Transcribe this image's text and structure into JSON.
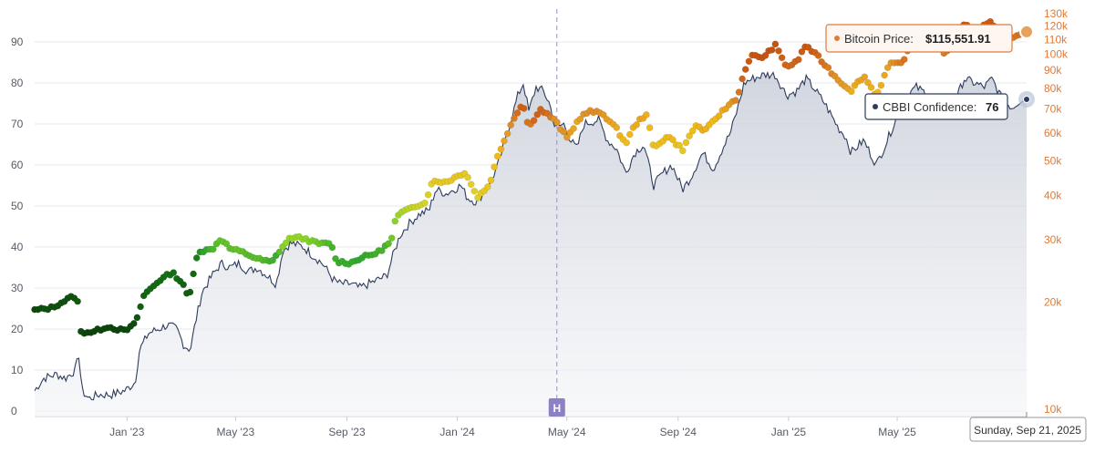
{
  "chart_data": {
    "type": "line",
    "x_ticks": [
      "Jan '23",
      "May '23",
      "Sep '23",
      "Jan '24",
      "May '24",
      "Sep '24",
      "Jan '25",
      "May '25"
    ],
    "y_left": {
      "ticks": [
        "0",
        "10",
        "20",
        "30",
        "40",
        "50",
        "60",
        "70",
        "80",
        "90"
      ],
      "range": [
        0,
        100
      ]
    },
    "y_right": {
      "ticks": [
        "10k",
        "20k",
        "30k",
        "40k",
        "50k",
        "60k",
        "70k",
        "80k",
        "90k",
        "100k",
        "110k",
        "120k",
        "130k"
      ],
      "scale": "log",
      "range": [
        10000,
        130000
      ]
    },
    "series": [
      {
        "name": "CBBI Confidence",
        "color": "#2d3b5c",
        "points": [
          [
            "2022-09-21",
            5
          ],
          [
            "2022-10-01",
            8
          ],
          [
            "2022-10-15",
            9
          ],
          [
            "2022-10-25",
            8
          ],
          [
            "2022-11-05",
            10
          ],
          [
            "2022-11-09",
            14
          ],
          [
            "2022-11-12",
            5
          ],
          [
            "2022-11-20",
            3
          ],
          [
            "2022-12-01",
            4
          ],
          [
            "2022-12-15",
            4
          ],
          [
            "2022-12-30",
            5
          ],
          [
            "2023-01-10",
            7
          ],
          [
            "2023-01-15",
            15
          ],
          [
            "2023-01-25",
            19
          ],
          [
            "2023-02-05",
            20
          ],
          [
            "2023-02-15",
            21
          ],
          [
            "2023-02-25",
            20
          ],
          [
            "2023-03-05",
            16
          ],
          [
            "2023-03-12",
            15
          ],
          [
            "2023-03-18",
            22
          ],
          [
            "2023-03-25",
            29
          ],
          [
            "2023-04-05",
            33
          ],
          [
            "2023-04-15",
            36
          ],
          [
            "2023-04-25",
            35
          ],
          [
            "2023-05-05",
            36
          ],
          [
            "2023-05-15",
            34
          ],
          [
            "2023-05-25",
            35
          ],
          [
            "2023-06-05",
            33
          ],
          [
            "2023-06-15",
            31
          ],
          [
            "2023-06-22",
            39
          ],
          [
            "2023-07-01",
            41
          ],
          [
            "2023-07-15",
            40
          ],
          [
            "2023-07-25",
            38
          ],
          [
            "2023-08-05",
            36
          ],
          [
            "2023-08-17",
            32
          ],
          [
            "2023-08-25",
            31
          ],
          [
            "2023-09-05",
            31
          ],
          [
            "2023-09-15",
            30
          ],
          [
            "2023-09-25",
            31
          ],
          [
            "2023-10-05",
            32
          ],
          [
            "2023-10-15",
            33
          ],
          [
            "2023-10-22",
            38
          ],
          [
            "2023-10-30",
            43
          ],
          [
            "2023-11-10",
            46
          ],
          [
            "2023-11-20",
            48
          ],
          [
            "2023-12-01",
            49
          ],
          [
            "2023-12-08",
            54
          ],
          [
            "2023-12-20",
            53
          ],
          [
            "2024-01-05",
            55
          ],
          [
            "2024-01-12",
            52
          ],
          [
            "2024-01-22",
            51
          ],
          [
            "2024-02-05",
            55
          ],
          [
            "2024-02-15",
            60
          ],
          [
            "2024-02-28",
            70
          ],
          [
            "2024-03-08",
            77
          ],
          [
            "2024-03-14",
            80
          ],
          [
            "2024-03-20",
            73
          ],
          [
            "2024-03-28",
            79
          ],
          [
            "2024-04-05",
            78
          ],
          [
            "2024-04-12",
            75
          ],
          [
            "2024-04-18",
            69
          ],
          [
            "2024-04-28",
            70
          ],
          [
            "2024-05-05",
            66
          ],
          [
            "2024-05-12",
            64
          ],
          [
            "2024-05-20",
            70
          ],
          [
            "2024-06-05",
            71
          ],
          [
            "2024-06-15",
            66
          ],
          [
            "2024-06-25",
            64
          ],
          [
            "2024-07-05",
            58
          ],
          [
            "2024-07-15",
            63
          ],
          [
            "2024-07-25",
            65
          ],
          [
            "2024-08-05",
            55
          ],
          [
            "2024-08-15",
            58
          ],
          [
            "2024-08-25",
            60
          ],
          [
            "2024-09-06",
            54
          ],
          [
            "2024-09-15",
            57
          ],
          [
            "2024-09-28",
            63
          ],
          [
            "2024-10-10",
            59
          ],
          [
            "2024-10-20",
            64
          ],
          [
            "2024-10-29",
            68
          ],
          [
            "2024-11-06",
            74
          ],
          [
            "2024-11-13",
            80
          ],
          [
            "2024-11-22",
            81
          ],
          [
            "2024-12-05",
            82
          ],
          [
            "2024-12-17",
            82
          ],
          [
            "2024-12-30",
            77
          ],
          [
            "2025-01-10",
            78
          ],
          [
            "2025-01-20",
            81
          ],
          [
            "2025-01-28",
            79
          ],
          [
            "2025-02-10",
            75
          ],
          [
            "2025-02-25",
            69
          ],
          [
            "2025-03-05",
            67
          ],
          [
            "2025-03-11",
            63
          ],
          [
            "2025-03-25",
            66
          ],
          [
            "2025-04-08",
            60
          ],
          [
            "2025-04-20",
            66
          ],
          [
            "2025-05-01",
            72
          ],
          [
            "2025-05-12",
            77
          ],
          [
            "2025-05-22",
            79
          ],
          [
            "2025-06-05",
            77
          ],
          [
            "2025-06-15",
            76
          ],
          [
            "2025-06-22",
            74
          ],
          [
            "2025-07-05",
            76
          ],
          [
            "2025-07-14",
            81
          ],
          [
            "2025-07-25",
            80
          ],
          [
            "2025-08-05",
            79
          ],
          [
            "2025-08-14",
            81
          ],
          [
            "2025-08-25",
            76
          ],
          [
            "2025-09-05",
            74
          ],
          [
            "2025-09-15",
            76
          ],
          [
            "2025-09-21",
            76
          ]
        ]
      },
      {
        "name": "Bitcoin Price",
        "color": "#e07a3a",
        "points": [
          [
            "2022-09-21",
            19000
          ],
          [
            "2022-10-10",
            19300
          ],
          [
            "2022-10-30",
            20600
          ],
          [
            "2022-11-07",
            20800
          ],
          [
            "2022-11-10",
            16500
          ],
          [
            "2022-11-25",
            16500
          ],
          [
            "2022-12-10",
            17100
          ],
          [
            "2022-12-30",
            16600
          ],
          [
            "2023-01-10",
            17400
          ],
          [
            "2023-01-20",
            21000
          ],
          [
            "2023-02-05",
            23000
          ],
          [
            "2023-02-20",
            24300
          ],
          [
            "2023-03-05",
            22400
          ],
          [
            "2023-03-10",
            20200
          ],
          [
            "2023-03-20",
            27800
          ],
          [
            "2023-04-05",
            28200
          ],
          [
            "2023-04-15",
            30300
          ],
          [
            "2023-04-25",
            28300
          ],
          [
            "2023-05-10",
            27600
          ],
          [
            "2023-05-25",
            26500
          ],
          [
            "2023-06-10",
            25900
          ],
          [
            "2023-06-20",
            28300
          ],
          [
            "2023-07-01",
            30500
          ],
          [
            "2023-07-15",
            30300
          ],
          [
            "2023-07-30",
            29300
          ],
          [
            "2023-08-15",
            29200
          ],
          [
            "2023-08-20",
            26100
          ],
          [
            "2023-09-05",
            25800
          ],
          [
            "2023-09-15",
            26600
          ],
          [
            "2023-10-05",
            27600
          ],
          [
            "2023-10-20",
            29700
          ],
          [
            "2023-10-25",
            34500
          ],
          [
            "2023-11-10",
            37300
          ],
          [
            "2023-11-25",
            37700
          ],
          [
            "2023-12-05",
            43900
          ],
          [
            "2023-12-20",
            43700
          ],
          [
            "2024-01-10",
            46600
          ],
          [
            "2024-01-23",
            39500
          ],
          [
            "2024-02-05",
            42700
          ],
          [
            "2024-02-15",
            52000
          ],
          [
            "2024-02-28",
            62500
          ],
          [
            "2024-03-05",
            67000
          ],
          [
            "2024-03-13",
            73100
          ],
          [
            "2024-03-20",
            62000
          ],
          [
            "2024-04-01",
            70000
          ],
          [
            "2024-04-12",
            67000
          ],
          [
            "2024-04-20",
            64000
          ],
          [
            "2024-05-01",
            58000
          ],
          [
            "2024-05-15",
            66000
          ],
          [
            "2024-05-25",
            69000
          ],
          [
            "2024-06-10",
            68000
          ],
          [
            "2024-06-25",
            61500
          ],
          [
            "2024-07-05",
            56000
          ],
          [
            "2024-07-15",
            63000
          ],
          [
            "2024-07-28",
            68000
          ],
          [
            "2024-08-05",
            54000
          ],
          [
            "2024-08-20",
            59000
          ],
          [
            "2024-09-06",
            53900
          ],
          [
            "2024-09-20",
            63000
          ],
          [
            "2024-10-01",
            60800
          ],
          [
            "2024-10-15",
            67000
          ],
          [
            "2024-10-29",
            72700
          ],
          [
            "2024-11-06",
            75800
          ],
          [
            "2024-11-13",
            90000
          ],
          [
            "2024-11-22",
            98900
          ],
          [
            "2024-12-05",
            98000
          ],
          [
            "2024-12-17",
            106100
          ],
          [
            "2024-12-30",
            92000
          ],
          [
            "2025-01-10",
            95000
          ],
          [
            "2025-01-20",
            106000
          ],
          [
            "2025-02-03",
            98000
          ],
          [
            "2025-02-25",
            84500
          ],
          [
            "2025-03-11",
            79000
          ],
          [
            "2025-03-25",
            87000
          ],
          [
            "2025-04-08",
            76300
          ],
          [
            "2025-04-22",
            93500
          ],
          [
            "2025-05-05",
            94000
          ],
          [
            "2025-05-22",
            111000
          ],
          [
            "2025-06-10",
            109000
          ],
          [
            "2025-06-22",
            101000
          ],
          [
            "2025-07-05",
            108000
          ],
          [
            "2025-07-14",
            121000
          ],
          [
            "2025-07-28",
            118000
          ],
          [
            "2025-08-14",
            123000
          ],
          [
            "2025-08-25",
            110000
          ],
          [
            "2025-09-05",
            111000
          ],
          [
            "2025-09-21",
            115551.91
          ]
        ]
      }
    ],
    "color_scale": {
      "stops": [
        [
          0,
          "#0b3d0b"
        ],
        [
          20,
          "#126b12"
        ],
        [
          30,
          "#2ea82e"
        ],
        [
          40,
          "#8ed62a"
        ],
        [
          50,
          "#dfd22a"
        ],
        [
          60,
          "#f0b81a"
        ],
        [
          70,
          "#e0922a"
        ],
        [
          80,
          "#cc5a14"
        ],
        [
          90,
          "#a83a08"
        ]
      ]
    },
    "marker_label": "H",
    "marker_date": "2024-04-20",
    "x_range": [
      "2022-09-21",
      "2025-09-21"
    ],
    "tooltips": {
      "price_label": "Bitcoin Price: ",
      "price_value": "$115,551.91",
      "cbbi_label": "CBBI Confidence: ",
      "cbbi_value": "76",
      "date": "Sunday, Sep 21, 2025"
    }
  }
}
